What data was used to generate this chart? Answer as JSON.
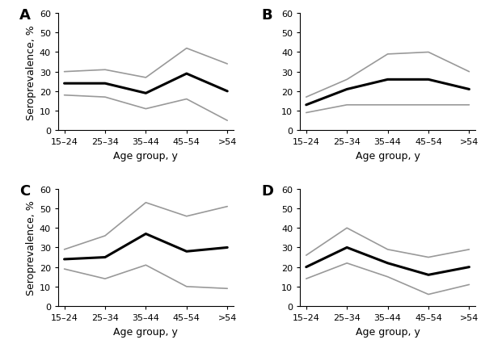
{
  "age_labels": [
    "15–24",
    "25–34",
    "35–44",
    "45–54",
    ">54"
  ],
  "panels": [
    {
      "label": "A",
      "sero": [
        24,
        24,
        19,
        29,
        20
      ],
      "upper": [
        30,
        31,
        27,
        42,
        34
      ],
      "lower": [
        18,
        17,
        11,
        16,
        5
      ]
    },
    {
      "label": "B",
      "sero": [
        13,
        21,
        26,
        26,
        21
      ],
      "upper": [
        17,
        26,
        39,
        40,
        30
      ],
      "lower": [
        9,
        13,
        13,
        13,
        13
      ]
    },
    {
      "label": "C",
      "sero": [
        24,
        25,
        37,
        28,
        30
      ],
      "upper": [
        29,
        36,
        53,
        46,
        51
      ],
      "lower": [
        19,
        14,
        21,
        10,
        9
      ]
    },
    {
      "label": "D",
      "sero": [
        20,
        30,
        22,
        16,
        20
      ],
      "upper": [
        26,
        40,
        29,
        25,
        29
      ],
      "lower": [
        14,
        22,
        15,
        6,
        11
      ]
    }
  ],
  "xlabel": "Age group, y",
  "ylabel": "Seroprevalence, %",
  "ylim": [
    0,
    60
  ],
  "yticks": [
    0,
    10,
    20,
    30,
    40,
    50,
    60
  ],
  "black_color": "#000000",
  "grey_color": "#999999",
  "tick_fontsize": 8,
  "axis_fontsize": 9,
  "panel_label_fontsize": 13
}
